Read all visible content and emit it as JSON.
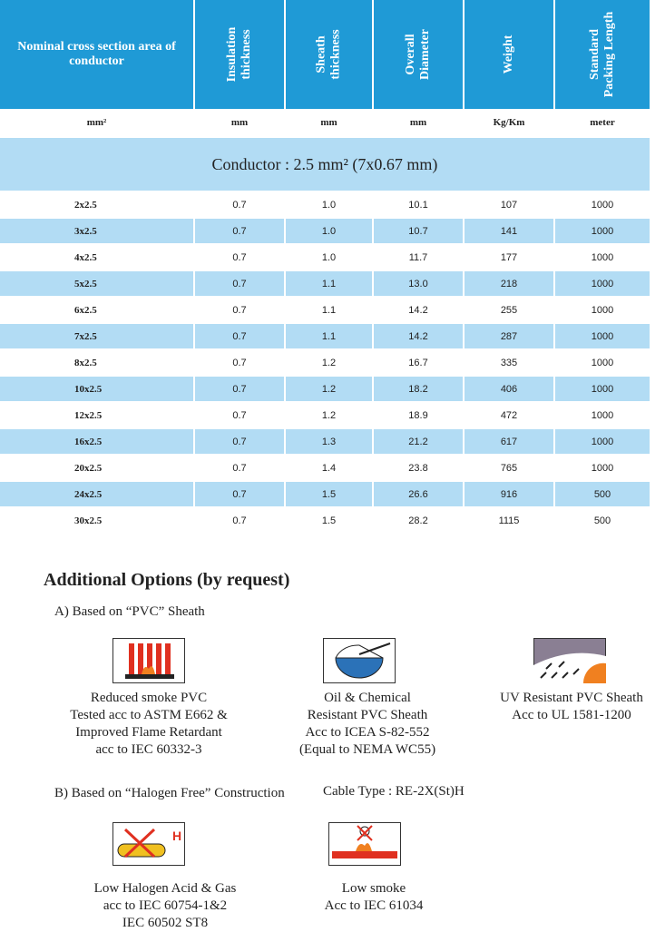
{
  "table": {
    "header": [
      "Nominal cross section area of conductor",
      "Insulation thickness",
      "Sheath thickness",
      "Overall Diameter",
      "Weight",
      "Standard Packing Length"
    ],
    "units": [
      "mm²",
      "mm",
      "mm",
      "mm",
      "Kg/Km",
      "meter"
    ],
    "group": "Conductor : 2.5 mm² (7x0.67 mm)",
    "rows": [
      [
        "2x2.5",
        "0.7",
        "1.0",
        "10.1",
        "107",
        "1000"
      ],
      [
        "3x2.5",
        "0.7",
        "1.0",
        "10.7",
        "141",
        "1000"
      ],
      [
        "4x2.5",
        "0.7",
        "1.0",
        "11.7",
        "177",
        "1000"
      ],
      [
        "5x2.5",
        "0.7",
        "1.1",
        "13.0",
        "218",
        "1000"
      ],
      [
        "6x2.5",
        "0.7",
        "1.1",
        "14.2",
        "255",
        "1000"
      ],
      [
        "7x2.5",
        "0.7",
        "1.1",
        "14.2",
        "287",
        "1000"
      ],
      [
        "8x2.5",
        "0.7",
        "1.2",
        "16.7",
        "335",
        "1000"
      ],
      [
        "10x2.5",
        "0.7",
        "1.2",
        "18.2",
        "406",
        "1000"
      ],
      [
        "12x2.5",
        "0.7",
        "1.2",
        "18.9",
        "472",
        "1000"
      ],
      [
        "16x2.5",
        "0.7",
        "1.3",
        "21.2",
        "617",
        "1000"
      ],
      [
        "20x2.5",
        "0.7",
        "1.4",
        "23.8",
        "765",
        "1000"
      ],
      [
        "24x2.5",
        "0.7",
        "1.5",
        "26.6",
        "916",
        "500"
      ],
      [
        "30x2.5",
        "0.7",
        "1.5",
        "28.2",
        "1115",
        "500"
      ]
    ]
  },
  "options": {
    "title": "Additional Options (by request)",
    "sections": [
      {
        "heading": "A) Based on “PVC” Sheath",
        "items": [
          {
            "lines": [
              "Reduced smoke PVC",
              "Tested acc to ASTM E662 &",
              "Improved Flame Retardant",
              "acc to IEC 60332-3"
            ]
          },
          {
            "lines": [
              "Oil & Chemical",
              "Resistant PVC Sheath",
              "Acc to ICEA S-82-552",
              "(Equal to NEMA WC55)"
            ]
          },
          {
            "lines": [
              "UV Resistant PVC Sheath",
              "Acc to UL 1581-1200"
            ]
          }
        ]
      },
      {
        "heading": "B) Based on “Halogen Free” Construction",
        "note": "Cable Type : RE-2X(St)H",
        "items": [
          {
            "lines": [
              "Low Halogen Acid & Gas",
              "acc to IEC 60754-1&2",
              "IEC 60502 ST8"
            ]
          },
          {
            "lines": [
              "Low smoke",
              "Acc to IEC 61034"
            ]
          }
        ]
      }
    ]
  }
}
